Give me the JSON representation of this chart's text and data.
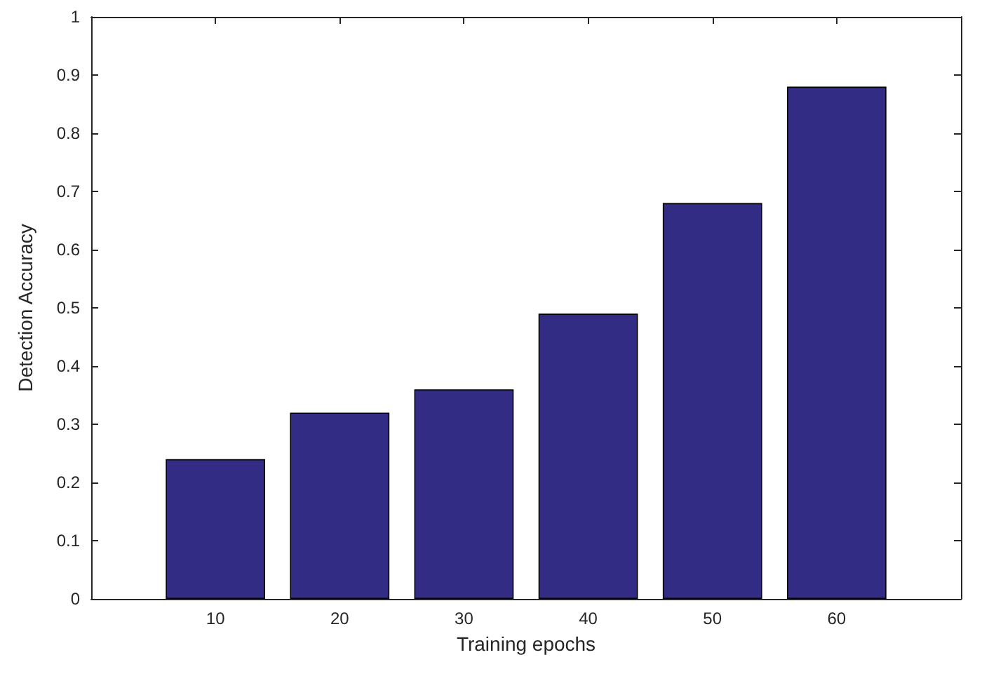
{
  "chart_data": {
    "type": "bar",
    "xlabel": "Training epochs",
    "ylabel": "Detection Accuracy",
    "x": [
      10,
      20,
      30,
      40,
      50,
      60
    ],
    "values": [
      0.24,
      0.32,
      0.36,
      0.49,
      0.68,
      0.88
    ],
    "color": "#332c85",
    "xlim": [
      0,
      70
    ],
    "xticks": [
      10,
      20,
      30,
      40,
      50,
      60
    ],
    "ylim": [
      0,
      1
    ],
    "yticks": [
      0,
      0.1,
      0.2,
      0.3,
      0.4,
      0.5,
      0.6,
      0.7,
      0.8,
      0.9,
      1
    ],
    "grid": false
  }
}
